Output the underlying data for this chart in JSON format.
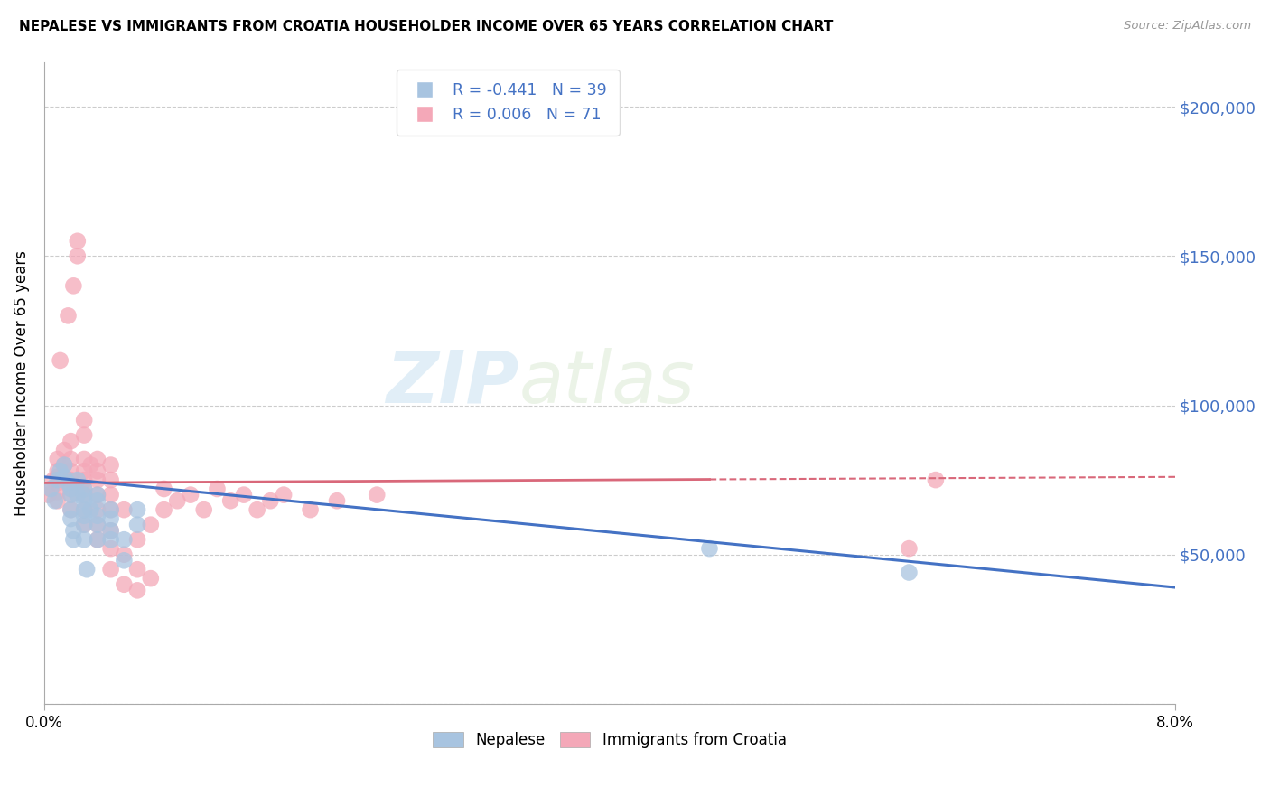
{
  "title": "NEPALESE VS IMMIGRANTS FROM CROATIA HOUSEHOLDER INCOME OVER 65 YEARS CORRELATION CHART",
  "source": "Source: ZipAtlas.com",
  "ylabel": "Householder Income Over 65 years",
  "watermark_zip": "ZIP",
  "watermark_atlas": "atlas",
  "legend_blue_r": "-0.441",
  "legend_blue_n": "39",
  "legend_pink_r": "0.006",
  "legend_pink_n": "71",
  "yticks": [
    0,
    50000,
    100000,
    150000,
    200000
  ],
  "ytick_labels": [
    "",
    "$50,000",
    "$100,000",
    "$150,000",
    "$200,000"
  ],
  "xlim": [
    0.0,
    0.085
  ],
  "ylim": [
    0,
    215000
  ],
  "blue_color": "#a8c4e0",
  "pink_color": "#f4a8b8",
  "blue_line_color": "#4472c4",
  "pink_line_color": "#d9687a",
  "pink_line_solid_end": 0.05,
  "blue_scatter_x": [
    0.0005,
    0.0008,
    0.001,
    0.0012,
    0.0015,
    0.0015,
    0.0018,
    0.002,
    0.002,
    0.002,
    0.002,
    0.0022,
    0.0022,
    0.0025,
    0.0025,
    0.003,
    0.003,
    0.003,
    0.003,
    0.003,
    0.003,
    0.003,
    0.0032,
    0.0035,
    0.004,
    0.004,
    0.004,
    0.004,
    0.004,
    0.005,
    0.005,
    0.005,
    0.005,
    0.006,
    0.006,
    0.007,
    0.007,
    0.05,
    0.065
  ],
  "blue_scatter_y": [
    72000,
    68000,
    75000,
    78000,
    76000,
    80000,
    74000,
    70000,
    72000,
    65000,
    62000,
    58000,
    55000,
    70000,
    75000,
    60000,
    63000,
    65000,
    68000,
    70000,
    72000,
    55000,
    45000,
    65000,
    68000,
    55000,
    60000,
    63000,
    70000,
    55000,
    58000,
    62000,
    65000,
    48000,
    55000,
    60000,
    65000,
    52000,
    44000
  ],
  "pink_scatter_x": [
    0.0003,
    0.0005,
    0.0007,
    0.001,
    0.001,
    0.001,
    0.001,
    0.001,
    0.001,
    0.0012,
    0.0015,
    0.0015,
    0.0018,
    0.002,
    0.002,
    0.002,
    0.002,
    0.002,
    0.002,
    0.002,
    0.0022,
    0.0025,
    0.0025,
    0.003,
    0.003,
    0.003,
    0.003,
    0.003,
    0.003,
    0.003,
    0.003,
    0.003,
    0.0035,
    0.004,
    0.004,
    0.004,
    0.004,
    0.004,
    0.004,
    0.004,
    0.005,
    0.005,
    0.005,
    0.005,
    0.005,
    0.005,
    0.005,
    0.006,
    0.006,
    0.006,
    0.007,
    0.007,
    0.007,
    0.008,
    0.008,
    0.009,
    0.009,
    0.01,
    0.011,
    0.012,
    0.013,
    0.014,
    0.015,
    0.016,
    0.017,
    0.018,
    0.02,
    0.022,
    0.025,
    0.065,
    0.067
  ],
  "pink_scatter_y": [
    70000,
    72000,
    75000,
    68000,
    71000,
    74000,
    76000,
    78000,
    82000,
    115000,
    80000,
    85000,
    130000,
    65000,
    70000,
    72000,
    75000,
    78000,
    82000,
    88000,
    140000,
    150000,
    155000,
    60000,
    65000,
    70000,
    72000,
    75000,
    78000,
    82000,
    90000,
    95000,
    80000,
    55000,
    60000,
    65000,
    70000,
    75000,
    78000,
    82000,
    45000,
    52000,
    58000,
    65000,
    70000,
    75000,
    80000,
    40000,
    50000,
    65000,
    38000,
    45000,
    55000,
    42000,
    60000,
    65000,
    72000,
    68000,
    70000,
    65000,
    72000,
    68000,
    70000,
    65000,
    68000,
    70000,
    65000,
    68000,
    70000,
    52000,
    75000
  ]
}
